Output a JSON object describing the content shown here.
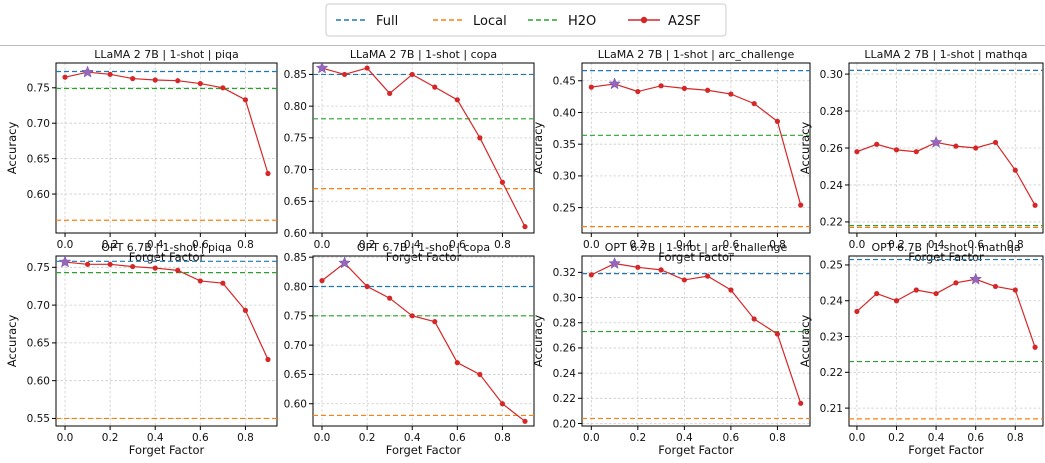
{
  "legend": [
    {
      "label": "Full",
      "color": "#1f77b4",
      "style": "dashed"
    },
    {
      "label": "Local",
      "color": "#ff7f0e",
      "style": "dashed"
    },
    {
      "label": "H2O",
      "color": "#2ca02c",
      "style": "dashed"
    },
    {
      "label": "A2SF",
      "color": "#d62728",
      "style": "line-marker"
    }
  ],
  "colors": {
    "full": "#1f77b4",
    "local": "#ff7f0e",
    "h2o": "#2ca02c",
    "a2sf": "#d62728",
    "best_marker": "#9467bd",
    "grid": "#cccccc"
  },
  "chart_data": [
    {
      "type": "line",
      "title": "LLaMA 2 7B | 1-shot | piqa",
      "xlabel": "Forget Factor",
      "ylabel": "Accuracy",
      "xlim": [
        -0.04,
        0.94
      ],
      "ylim": [
        0.545,
        0.785
      ],
      "xticks": [
        "0.0",
        "0.2",
        "0.4",
        "0.6",
        "0.8"
      ],
      "xtick_values": [
        0,
        0.2,
        0.4,
        0.6,
        0.8
      ],
      "yticks": [
        "0.60",
        "0.65",
        "0.70",
        "0.75"
      ],
      "ytick_values": [
        0.6,
        0.65,
        0.7,
        0.75
      ],
      "x": [
        0,
        0.1,
        0.2,
        0.3,
        0.4,
        0.5,
        0.6,
        0.7,
        0.8,
        0.9
      ],
      "series": [
        {
          "name": "Full",
          "type": "hline",
          "value": 0.773
        },
        {
          "name": "Local",
          "type": "hline",
          "value": 0.563
        },
        {
          "name": "H2O",
          "type": "hline",
          "value": 0.749
        },
        {
          "name": "A2SF",
          "type": "line",
          "values": [
            0.765,
            0.772,
            0.769,
            0.763,
            0.761,
            0.76,
            0.756,
            0.75,
            0.733,
            0.629
          ],
          "best_index": 1
        }
      ]
    },
    {
      "type": "line",
      "title": "LLaMA 2 7B | 1-shot | copa",
      "xlabel": "Forget Factor",
      "ylabel": "",
      "xlim": [
        -0.04,
        0.94
      ],
      "ylim": [
        0.6,
        0.868
      ],
      "xticks": [
        "0.0",
        "0.2",
        "0.4",
        "0.6",
        "0.8"
      ],
      "xtick_values": [
        0,
        0.2,
        0.4,
        0.6,
        0.8
      ],
      "yticks": [
        "0.60",
        "0.65",
        "0.70",
        "0.75",
        "0.80",
        "0.85"
      ],
      "ytick_values": [
        0.6,
        0.65,
        0.7,
        0.75,
        0.8,
        0.85
      ],
      "x": [
        0,
        0.1,
        0.2,
        0.3,
        0.4,
        0.5,
        0.6,
        0.7,
        0.8,
        0.9
      ],
      "series": [
        {
          "name": "Full",
          "type": "hline",
          "value": 0.85
        },
        {
          "name": "Local",
          "type": "hline",
          "value": 0.67
        },
        {
          "name": "H2O",
          "type": "hline",
          "value": 0.78
        },
        {
          "name": "A2SF",
          "type": "line",
          "values": [
            0.86,
            0.85,
            0.86,
            0.82,
            0.85,
            0.83,
            0.81,
            0.75,
            0.68,
            0.61
          ],
          "best_index": 0
        }
      ]
    },
    {
      "type": "line",
      "title": "LLaMA 2 7B | 1-shot | arc_challenge",
      "xlabel": "Forget Factor",
      "ylabel": "Accuracy",
      "xlim": [
        -0.04,
        0.94
      ],
      "ylim": [
        0.21,
        0.478
      ],
      "xticks": [
        "0.0",
        "0.2",
        "0.4",
        "0.6",
        "0.8"
      ],
      "xtick_values": [
        0,
        0.2,
        0.4,
        0.6,
        0.8
      ],
      "yticks": [
        "0.25",
        "0.30",
        "0.35",
        "0.40",
        "0.45"
      ],
      "ytick_values": [
        0.25,
        0.3,
        0.35,
        0.4,
        0.45
      ],
      "x": [
        0,
        0.1,
        0.2,
        0.3,
        0.4,
        0.5,
        0.6,
        0.7,
        0.8,
        0.9
      ],
      "series": [
        {
          "name": "Full",
          "type": "hline",
          "value": 0.466
        },
        {
          "name": "Local",
          "type": "hline",
          "value": 0.22
        },
        {
          "name": "H2O",
          "type": "hline",
          "value": 0.364
        },
        {
          "name": "A2SF",
          "type": "line",
          "values": [
            0.44,
            0.445,
            0.433,
            0.442,
            0.438,
            0.435,
            0.429,
            0.414,
            0.386,
            0.254
          ],
          "best_index": 1
        }
      ]
    },
    {
      "type": "line",
      "title": "LLaMA 2 7B | 1-shot | mathqa",
      "xlabel": "Forget Factor",
      "ylabel": "Accuracy",
      "xlim": [
        -0.04,
        0.94
      ],
      "ylim": [
        0.214,
        0.306
      ],
      "xticks": [
        "0.0",
        "0.2",
        "0.4",
        "0.6",
        "0.8"
      ],
      "xtick_values": [
        0,
        0.2,
        0.4,
        0.6,
        0.8
      ],
      "yticks": [
        "0.22",
        "0.24",
        "0.26",
        "0.28",
        "0.30"
      ],
      "ytick_values": [
        0.22,
        0.24,
        0.26,
        0.28,
        0.3
      ],
      "x": [
        0,
        0.1,
        0.2,
        0.3,
        0.4,
        0.5,
        0.6,
        0.7,
        0.8,
        0.9
      ],
      "series": [
        {
          "name": "Full",
          "type": "hline",
          "value": 0.302
        },
        {
          "name": "Local",
          "type": "hline",
          "value": 0.217
        },
        {
          "name": "H2O",
          "type": "hline",
          "value": 0.218
        },
        {
          "name": "A2SF",
          "type": "line",
          "values": [
            0.258,
            0.262,
            0.259,
            0.258,
            0.263,
            0.261,
            0.26,
            0.263,
            0.248,
            0.229
          ],
          "best_index": 4
        }
      ]
    },
    {
      "type": "line",
      "title": "OPT 6.7B | 1-shot | piqa",
      "xlabel": "Forget Factor",
      "ylabel": "Accuracy",
      "xlim": [
        -0.04,
        0.94
      ],
      "ylim": [
        0.54,
        0.765
      ],
      "xticks": [
        "0.0",
        "0.2",
        "0.4",
        "0.6",
        "0.8"
      ],
      "xtick_values": [
        0,
        0.2,
        0.4,
        0.6,
        0.8
      ],
      "yticks": [
        "0.55",
        "0.60",
        "0.65",
        "0.70",
        "0.75"
      ],
      "ytick_values": [
        0.55,
        0.6,
        0.65,
        0.7,
        0.75
      ],
      "x": [
        0,
        0.1,
        0.2,
        0.3,
        0.4,
        0.5,
        0.6,
        0.7,
        0.8,
        0.9
      ],
      "series": [
        {
          "name": "Full",
          "type": "hline",
          "value": 0.758
        },
        {
          "name": "Local",
          "type": "hline",
          "value": 0.55
        },
        {
          "name": "H2O",
          "type": "hline",
          "value": 0.743
        },
        {
          "name": "A2SF",
          "type": "line",
          "values": [
            0.757,
            0.754,
            0.754,
            0.751,
            0.749,
            0.746,
            0.732,
            0.729,
            0.693,
            0.628
          ],
          "best_index": 0
        }
      ]
    },
    {
      "type": "line",
      "title": "OPT 6.7B | 1-shot | copa",
      "xlabel": "Forget Factor",
      "ylabel": "",
      "xlim": [
        -0.04,
        0.94
      ],
      "ylim": [
        0.562,
        0.852
      ],
      "xticks": [
        "0.0",
        "0.2",
        "0.4",
        "0.6",
        "0.8"
      ],
      "xtick_values": [
        0,
        0.2,
        0.4,
        0.6,
        0.8
      ],
      "yticks": [
        "0.60",
        "0.65",
        "0.70",
        "0.75",
        "0.80",
        "0.85"
      ],
      "ytick_values": [
        0.6,
        0.65,
        0.7,
        0.75,
        0.8,
        0.85
      ],
      "x": [
        0,
        0.1,
        0.2,
        0.3,
        0.4,
        0.5,
        0.6,
        0.7,
        0.8,
        0.9
      ],
      "series": [
        {
          "name": "Full",
          "type": "hline",
          "value": 0.8
        },
        {
          "name": "Local",
          "type": "hline",
          "value": 0.58
        },
        {
          "name": "H2O",
          "type": "hline",
          "value": 0.75
        },
        {
          "name": "A2SF",
          "type": "line",
          "values": [
            0.81,
            0.84,
            0.8,
            0.78,
            0.75,
            0.74,
            0.67,
            0.65,
            0.6,
            0.57
          ],
          "best_index": 1
        }
      ]
    },
    {
      "type": "line",
      "title": "OPT 6.7B | 1-shot | arc_challenge",
      "xlabel": "Forget Factor",
      "ylabel": "Accuracy",
      "xlim": [
        -0.04,
        0.94
      ],
      "ylim": [
        0.198,
        0.333
      ],
      "xticks": [
        "0.0",
        "0.2",
        "0.4",
        "0.6",
        "0.8"
      ],
      "xtick_values": [
        0,
        0.2,
        0.4,
        0.6,
        0.8
      ],
      "yticks": [
        "0.20",
        "0.22",
        "0.24",
        "0.26",
        "0.28",
        "0.30",
        "0.32"
      ],
      "ytick_values": [
        0.2,
        0.22,
        0.24,
        0.26,
        0.28,
        0.3,
        0.32
      ],
      "x": [
        0,
        0.1,
        0.2,
        0.3,
        0.4,
        0.5,
        0.6,
        0.7,
        0.8,
        0.9
      ],
      "series": [
        {
          "name": "Full",
          "type": "hline",
          "value": 0.319
        },
        {
          "name": "Local",
          "type": "hline",
          "value": 0.204
        },
        {
          "name": "H2O",
          "type": "hline",
          "value": 0.273
        },
        {
          "name": "A2SF",
          "type": "line",
          "values": [
            0.318,
            0.327,
            0.324,
            0.322,
            0.314,
            0.317,
            0.306,
            0.283,
            0.271,
            0.216
          ],
          "best_index": 1
        }
      ]
    },
    {
      "type": "line",
      "title": "OPT 6.7B | 1-shot | mathqa",
      "xlabel": "Forget Factor",
      "ylabel": "Accuracy",
      "xlim": [
        -0.04,
        0.94
      ],
      "ylim": [
        0.205,
        0.2525
      ],
      "xticks": [
        "0.0",
        "0.2",
        "0.4",
        "0.6",
        "0.8"
      ],
      "xtick_values": [
        0,
        0.2,
        0.4,
        0.6,
        0.8
      ],
      "yticks": [
        "0.21",
        "0.22",
        "0.23",
        "0.24",
        "0.25"
      ],
      "ytick_values": [
        0.21,
        0.22,
        0.23,
        0.24,
        0.25
      ],
      "x": [
        0,
        0.1,
        0.2,
        0.3,
        0.4,
        0.5,
        0.6,
        0.7,
        0.8,
        0.9
      ],
      "series": [
        {
          "name": "Full",
          "type": "hline",
          "value": 0.2515
        },
        {
          "name": "Local",
          "type": "hline",
          "value": 0.207
        },
        {
          "name": "H2O",
          "type": "hline",
          "value": 0.223
        },
        {
          "name": "A2SF",
          "type": "line",
          "values": [
            0.237,
            0.242,
            0.24,
            0.243,
            0.242,
            0.245,
            0.246,
            0.244,
            0.243,
            0.227
          ],
          "best_index": 6
        }
      ]
    }
  ]
}
